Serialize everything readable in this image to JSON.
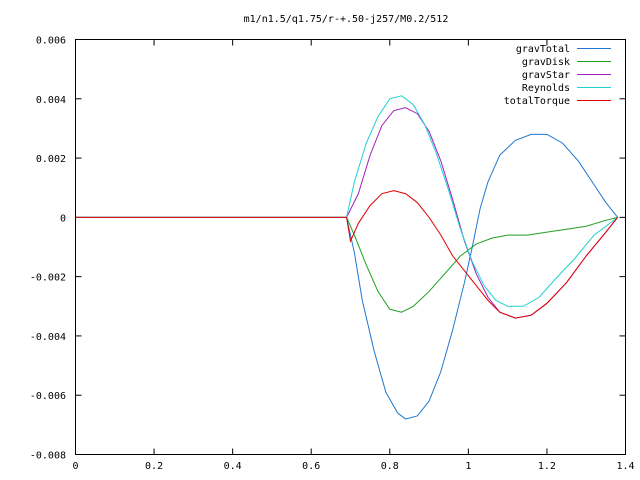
{
  "chart_data": {
    "type": "line",
    "title": "m1/n1.5/q1.75/r-+.50-j257/M0.2/512",
    "xlabel": "",
    "ylabel": "",
    "xlim": [
      0,
      1.4
    ],
    "ylim": [
      -0.008,
      0.006
    ],
    "grid": false,
    "legend_position": "top-right",
    "x_ticks": [
      0,
      0.2,
      0.4,
      0.6,
      0.8,
      1,
      1.2,
      1.4
    ],
    "x_tick_labels": [
      "0",
      "0.2",
      "0.4",
      "0.6",
      "0.8",
      "1",
      "1.2",
      "1.4"
    ],
    "y_ticks": [
      0.006,
      0.004,
      0.002,
      0,
      -0.002,
      -0.004,
      -0.006,
      -0.008
    ],
    "y_tick_labels": [
      "0.006",
      "0.004",
      "0.002",
      "0",
      "-0.002",
      "-0.004",
      "-0.006",
      "-0.008"
    ],
    "series": [
      {
        "name": "gravTotal",
        "color": "#1f77d0",
        "points": [
          [
            0,
            0
          ],
          [
            0.69,
            0
          ],
          [
            0.71,
            -0.0012
          ],
          [
            0.73,
            -0.0028
          ],
          [
            0.76,
            -0.0045
          ],
          [
            0.79,
            -0.0059
          ],
          [
            0.82,
            -0.0066
          ],
          [
            0.84,
            -0.0068
          ],
          [
            0.87,
            -0.0067
          ],
          [
            0.9,
            -0.0062
          ],
          [
            0.93,
            -0.0052
          ],
          [
            0.96,
            -0.0038
          ],
          [
            0.99,
            -0.0022
          ],
          [
            1.01,
            -0.001
          ],
          [
            1.03,
            0.0003
          ],
          [
            1.05,
            0.0012
          ],
          [
            1.08,
            0.0021
          ],
          [
            1.12,
            0.0026
          ],
          [
            1.16,
            0.0028
          ],
          [
            1.2,
            0.0028
          ],
          [
            1.24,
            0.0025
          ],
          [
            1.28,
            0.0019
          ],
          [
            1.32,
            0.0011
          ],
          [
            1.35,
            0.0005
          ],
          [
            1.38,
            0
          ]
        ]
      },
      {
        "name": "gravDisk",
        "color": "#20a020",
        "points": [
          [
            0,
            0
          ],
          [
            0.69,
            0
          ],
          [
            0.71,
            -0.0006
          ],
          [
            0.74,
            -0.0016
          ],
          [
            0.77,
            -0.0025
          ],
          [
            0.8,
            -0.0031
          ],
          [
            0.83,
            -0.0032
          ],
          [
            0.86,
            -0.003
          ],
          [
            0.9,
            -0.0025
          ],
          [
            0.94,
            -0.0019
          ],
          [
            0.98,
            -0.0013
          ],
          [
            1.02,
            -0.0009
          ],
          [
            1.06,
            -0.0007
          ],
          [
            1.1,
            -0.0006
          ],
          [
            1.15,
            -0.0006
          ],
          [
            1.2,
            -0.0005
          ],
          [
            1.25,
            -0.0004
          ],
          [
            1.3,
            -0.0003
          ],
          [
            1.35,
            -0.0001
          ],
          [
            1.38,
            0
          ]
        ]
      },
      {
        "name": "gravStar",
        "color": "#a020c0",
        "points": [
          [
            0,
            0
          ],
          [
            0.69,
            0
          ],
          [
            0.72,
            0.0008
          ],
          [
            0.75,
            0.0021
          ],
          [
            0.78,
            0.0031
          ],
          [
            0.81,
            0.0036
          ],
          [
            0.84,
            0.0037
          ],
          [
            0.87,
            0.0035
          ],
          [
            0.9,
            0.0029
          ],
          [
            0.93,
            0.0019
          ],
          [
            0.96,
            0.0006
          ],
          [
            0.99,
            -0.0008
          ],
          [
            1.02,
            -0.0019
          ],
          [
            1.05,
            -0.0027
          ],
          [
            1.08,
            -0.0032
          ],
          [
            1.12,
            -0.0034
          ],
          [
            1.16,
            -0.0033
          ],
          [
            1.2,
            -0.0029
          ],
          [
            1.25,
            -0.0022
          ],
          [
            1.3,
            -0.0013
          ],
          [
            1.35,
            -0.0005
          ],
          [
            1.38,
            0
          ]
        ]
      },
      {
        "name": "Reynolds",
        "color": "#20d0d0",
        "points": [
          [
            0,
            0
          ],
          [
            0.69,
            0
          ],
          [
            0.71,
            0.0012
          ],
          [
            0.74,
            0.0025
          ],
          [
            0.77,
            0.0034
          ],
          [
            0.8,
            0.004
          ],
          [
            0.83,
            0.0041
          ],
          [
            0.86,
            0.0038
          ],
          [
            0.89,
            0.0031
          ],
          [
            0.92,
            0.0021
          ],
          [
            0.95,
            0.0009
          ],
          [
            0.98,
            -0.0004
          ],
          [
            1.01,
            -0.0015
          ],
          [
            1.04,
            -0.0023
          ],
          [
            1.07,
            -0.0028
          ],
          [
            1.1,
            -0.003
          ],
          [
            1.14,
            -0.003
          ],
          [
            1.18,
            -0.0027
          ],
          [
            1.22,
            -0.0021
          ],
          [
            1.27,
            -0.0014
          ],
          [
            1.32,
            -0.0006
          ],
          [
            1.38,
            0
          ]
        ]
      },
      {
        "name": "totalTorque",
        "color": "#e00000",
        "points": [
          [
            0,
            0
          ],
          [
            0.69,
            0
          ],
          [
            0.7,
            -0.0008
          ],
          [
            0.72,
            -0.0002
          ],
          [
            0.75,
            0.0004
          ],
          [
            0.78,
            0.0008
          ],
          [
            0.81,
            0.0009
          ],
          [
            0.84,
            0.0008
          ],
          [
            0.87,
            0.0005
          ],
          [
            0.9,
            0
          ],
          [
            0.93,
            -0.0006
          ],
          [
            0.96,
            -0.0013
          ],
          [
            0.99,
            -0.0018
          ],
          [
            1.02,
            -0.0023
          ],
          [
            1.05,
            -0.0028
          ],
          [
            1.08,
            -0.0032
          ],
          [
            1.12,
            -0.0034
          ],
          [
            1.16,
            -0.0033
          ],
          [
            1.2,
            -0.0029
          ],
          [
            1.25,
            -0.0022
          ],
          [
            1.3,
            -0.0013
          ],
          [
            1.35,
            -0.0005
          ],
          [
            1.38,
            0
          ]
        ]
      }
    ]
  }
}
